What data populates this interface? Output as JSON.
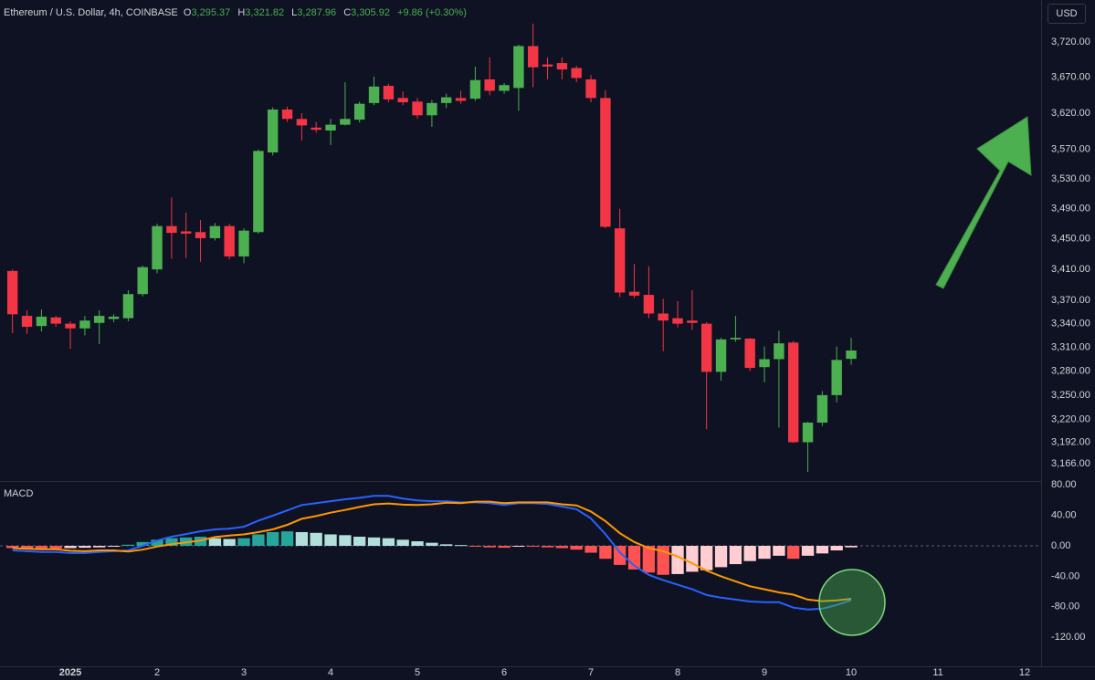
{
  "header": {
    "symbol": "Ethereum / U.S. Dollar, 4h, COINBASE",
    "open_label": "O",
    "open": "3,295.37",
    "high_label": "H",
    "high": "3,321.82",
    "low_label": "L",
    "low": "3,287.96",
    "close_label": "C",
    "close": "3,305.92",
    "change": "+9.86 (+0.30%)",
    "currency": "USD"
  },
  "chart_data": [
    {
      "type": "candlestick",
      "log_scale": true,
      "grid": false,
      "up_color": "#4caf50",
      "down_color": "#f23645",
      "x": [
        0.333,
        0.5,
        0.667,
        0.833,
        1,
        1.167,
        1.333,
        1.5,
        1.667,
        1.833,
        2,
        2.167,
        2.333,
        2.5,
        2.667,
        2.833,
        3,
        3.167,
        3.333,
        3.5,
        3.667,
        3.833,
        4,
        4.167,
        4.333,
        4.5,
        4.667,
        4.833,
        5,
        5.167,
        5.333,
        5.5,
        5.667,
        5.833,
        6,
        6.167,
        6.333,
        6.5,
        6.667,
        6.833,
        7,
        7.167,
        7.333,
        7.5,
        7.667,
        7.833,
        8,
        8.167,
        8.333,
        8.5,
        8.667,
        8.833,
        9,
        9.167,
        9.333,
        9.5,
        9.667,
        9.833,
        10
      ],
      "open": [
        3408,
        3350,
        3337,
        3348,
        3340,
        3334,
        3341,
        3346,
        3347,
        3378,
        3410,
        3467,
        3460,
        3459,
        3451,
        3467,
        3427,
        3459,
        3566,
        3625,
        3612,
        3600,
        3596,
        3604,
        3611,
        3634,
        3658,
        3641,
        3636,
        3617,
        3634,
        3641,
        3640,
        3667,
        3651,
        3655,
        3714,
        3688,
        3690,
        3683,
        3667,
        3641,
        3464,
        3381,
        3377,
        3353,
        3347,
        3344,
        3340,
        3279,
        3320,
        3321,
        3285,
        3295,
        3316,
        3192,
        3216,
        3250,
        3295.37
      ],
      "high": [
        3410,
        3357,
        3358,
        3350,
        3343,
        3350,
        3357,
        3352,
        3383,
        3415,
        3470,
        3505,
        3485,
        3475,
        3471,
        3470,
        3464,
        3570,
        3628,
        3629,
        3620,
        3608,
        3612,
        3663,
        3636,
        3671,
        3661,
        3650,
        3641,
        3638,
        3647,
        3651,
        3685,
        3698,
        3662,
        3716,
        3746,
        3698,
        3698,
        3686,
        3673,
        3652,
        3490,
        3417,
        3414,
        3372,
        3369,
        3383,
        3342,
        3322,
        3350,
        3322,
        3311,
        3331,
        3318,
        3217,
        3255,
        3311,
        3321.82
      ],
      "low": [
        3328,
        3327,
        3330,
        3336,
        3308,
        3325,
        3314,
        3342,
        3343,
        3375,
        3405,
        3424,
        3425,
        3420,
        3448,
        3423,
        3418,
        3457,
        3562,
        3608,
        3582,
        3593,
        3576,
        3603,
        3607,
        3631,
        3635,
        3631,
        3612,
        3601,
        3627,
        3633,
        3637,
        3645,
        3647,
        3623,
        3656,
        3667,
        3667,
        3663,
        3635,
        3464,
        3374,
        3373,
        3347,
        3305,
        3335,
        3332,
        3208,
        3268,
        3317,
        3280,
        3266,
        3210,
        3191,
        3156,
        3212,
        3241,
        3287.96
      ],
      "close": [
        3352,
        3336,
        3349,
        3340,
        3334,
        3344,
        3350,
        3349,
        3378,
        3413,
        3467,
        3458,
        3457,
        3451,
        3467,
        3427,
        3461,
        3568,
        3625,
        3612,
        3603,
        3597,
        3604,
        3612,
        3633,
        3657,
        3639,
        3635,
        3617,
        3634,
        3642,
        3637,
        3666,
        3651,
        3659,
        3714,
        3684,
        3685,
        3681,
        3669,
        3641,
        3466,
        3380,
        3376,
        3353,
        3344,
        3340,
        3341,
        3279,
        3320,
        3322,
        3284,
        3295,
        3315,
        3192,
        3216,
        3250,
        3294,
        3305.92
      ],
      "ylim": [
        3145,
        3780
      ],
      "yticks": [
        {
          "value": 3720,
          "label": "3,720.00"
        },
        {
          "value": 3670,
          "label": "3,670.00"
        },
        {
          "value": 3620,
          "label": "3,620.00"
        },
        {
          "value": 3570,
          "label": "3,570.00"
        },
        {
          "value": 3530,
          "label": "3,530.00"
        },
        {
          "value": 3490,
          "label": "3,490.00"
        },
        {
          "value": 3450,
          "label": "3,450.00"
        },
        {
          "value": 3410,
          "label": "3,410.00"
        },
        {
          "value": 3370,
          "label": "3,370.00"
        },
        {
          "value": 3340,
          "label": "3,340.00"
        },
        {
          "value": 3310,
          "label": "3,310.00"
        },
        {
          "value": 3280,
          "label": "3,280.00"
        },
        {
          "value": 3250,
          "label": "3,250.00"
        },
        {
          "value": 3220,
          "label": "3,220.00"
        },
        {
          "value": 3192,
          "label": "3,192.00"
        },
        {
          "value": 3166,
          "label": "3,166.00"
        }
      ],
      "xlim": [
        0.189,
        12.189
      ],
      "xticks": [
        {
          "value": 1,
          "label": "2025"
        },
        2,
        3,
        4,
        5,
        6,
        7,
        8,
        9,
        10,
        11,
        12
      ]
    },
    {
      "type": "macd",
      "title": "MACD",
      "grid": false,
      "ylim": [
        -158,
        85
      ],
      "yticks": [
        {
          "value": 80,
          "label": "80.00"
        },
        {
          "value": 40,
          "label": "40.00"
        },
        {
          "value": 0,
          "label": "0.00"
        },
        {
          "value": -40,
          "label": "-40.00"
        },
        {
          "value": -80,
          "label": "-80.00"
        },
        {
          "value": -120,
          "label": "-120.00"
        }
      ],
      "histogram": {
        "colors": {
          "pos_rise": "#26a69a",
          "pos_fall": "#b2dfdb",
          "neg_fall": "#ff5252",
          "neg_rise": "#ffcdd2"
        },
        "values": [
          -3,
          -3,
          -3.5,
          -3.5,
          -3,
          -2.5,
          -2,
          -1,
          1.5,
          5,
          8,
          10,
          11,
          12,
          10,
          9,
          10,
          15,
          18,
          19,
          18,
          17,
          15,
          14,
          12,
          11,
          10,
          8,
          6,
          4,
          2,
          1,
          -1,
          -2,
          -2.5,
          -1,
          -1,
          -2,
          -3,
          -5,
          -9,
          -17,
          -25,
          -31,
          -35,
          -38,
          -37,
          -34,
          -32,
          -28,
          -24,
          -20,
          -17,
          -13,
          -17,
          -13,
          -10,
          -6,
          -2
        ]
      },
      "series": [
        {
          "color": "#2962ff",
          "values": [
            -6,
            -7,
            -8,
            -8,
            -9.5,
            -9.5,
            -8,
            -7,
            -6,
            0,
            7,
            12,
            15.5,
            19,
            21.5,
            22.5,
            25,
            33,
            39.5,
            46.5,
            53.5,
            56,
            58.5,
            61,
            63,
            65.5,
            65.5,
            62,
            59.5,
            58.5,
            58.5,
            57,
            57,
            56,
            53.5,
            56,
            56,
            55,
            51.5,
            48,
            36,
            15.5,
            -8.5,
            -26,
            -38,
            -45,
            -51,
            -57,
            -64.5,
            -68,
            -70.5,
            -73,
            -74,
            -74,
            -81,
            -83.5,
            -82.5,
            -77.5,
            -71.5
          ]
        },
        {
          "color": "#ff9800",
          "values": [
            -3,
            -4,
            -4.5,
            -4.5,
            -6.5,
            -7,
            -6,
            -6,
            -7.5,
            -5,
            -1,
            2,
            4.5,
            7,
            11.5,
            13.5,
            15,
            18,
            21.5,
            27.5,
            35.5,
            39,
            43.5,
            47,
            51,
            54.5,
            55.5,
            54,
            53.5,
            54.5,
            56.5,
            56,
            58,
            58,
            56,
            57,
            57,
            57,
            54.5,
            53,
            45,
            32.5,
            16.5,
            5,
            -3,
            -7,
            -14,
            -23,
            -32.5,
            -40,
            -46.5,
            -53,
            -57,
            -61,
            -64,
            -70.5,
            -72.5,
            -71.5,
            -69.5
          ]
        }
      ]
    }
  ]
}
